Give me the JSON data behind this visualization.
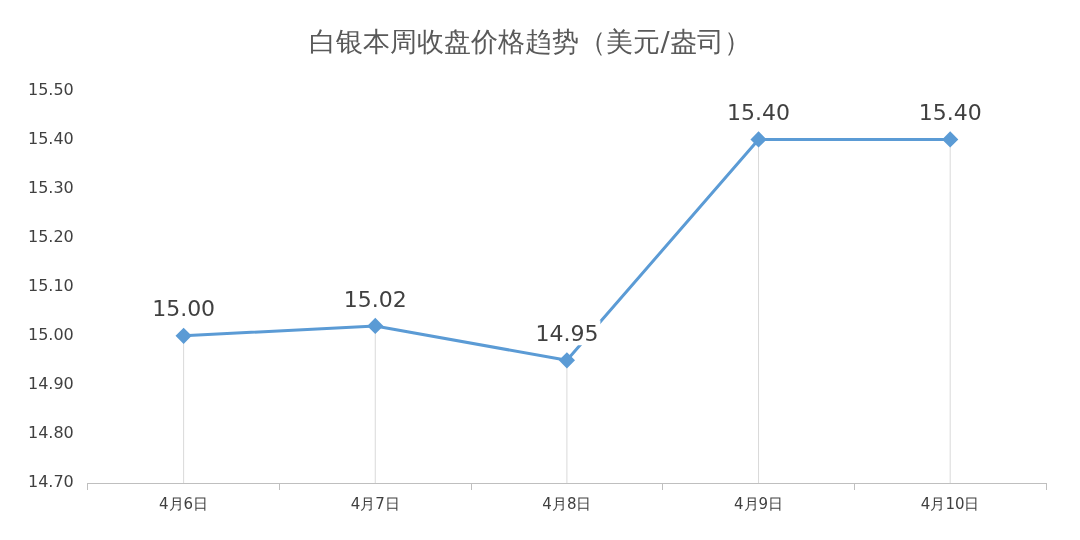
{
  "chart_data": {
    "type": "line",
    "title": "白银本周收盘价格趋势（美元/盎司）",
    "categories": [
      "4月6日",
      "4月7日",
      "4月8日",
      "4月9日",
      "4月10日"
    ],
    "series": [
      {
        "color": "#5b9bd5",
        "values": [
          15.0,
          15.02,
          14.95,
          15.4,
          15.4
        ],
        "value_labels": [
          "15.00",
          "15.02",
          "14.95",
          "15.40",
          "15.40"
        ]
      }
    ],
    "ylim": [
      14.7,
      15.5
    ],
    "yticks": [
      {
        "value": 14.7,
        "label": "14.70"
      },
      {
        "value": 14.8,
        "label": "14.80"
      },
      {
        "value": 14.9,
        "label": "14.90"
      },
      {
        "value": 15.0,
        "label": "15.00"
      },
      {
        "value": 15.1,
        "label": "15.10"
      },
      {
        "value": 15.2,
        "label": "15.20"
      },
      {
        "value": 15.3,
        "label": "15.30"
      },
      {
        "value": 15.4,
        "label": "15.40"
      },
      {
        "value": 15.5,
        "label": "15.50"
      }
    ],
    "grid": "x",
    "legend": false,
    "marker": "diamond",
    "line_style": "solid"
  }
}
